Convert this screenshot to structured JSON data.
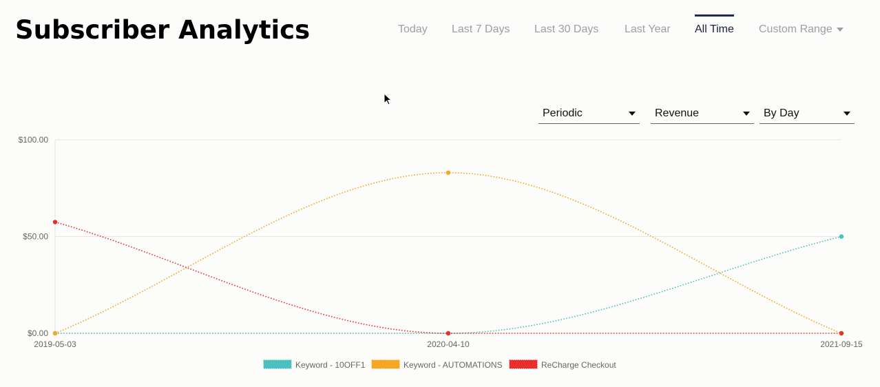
{
  "page": {
    "title": "Subscriber Analytics"
  },
  "tabs": [
    {
      "label": "Today",
      "active": false
    },
    {
      "label": "Last 7 Days",
      "active": false
    },
    {
      "label": "Last 30 Days",
      "active": false
    },
    {
      "label": "Last Year",
      "active": false
    },
    {
      "label": "All Time",
      "active": true
    },
    {
      "label": "Custom Range",
      "active": false
    }
  ],
  "controls": {
    "mode": "Periodic",
    "metric": "Revenue",
    "grouping": "By Day"
  },
  "chart_data": {
    "type": "line",
    "title": "",
    "xlabel": "",
    "ylabel": "",
    "categories": [
      "2019-05-03",
      "2020-04-10",
      "2021-09-15"
    ],
    "ylim": [
      0,
      100
    ],
    "yticks": [
      "$0.00",
      "$50.00",
      "$100.00"
    ],
    "ytick_values": [
      0,
      50,
      100
    ],
    "grid": true,
    "legend_position": "bottom",
    "series": [
      {
        "name": "Keyword - 10OFF1",
        "color": "#4bc0c0",
        "values": [
          0,
          0,
          50
        ]
      },
      {
        "name": "Keyword - AUTOMATIONS",
        "color": "#f5a623",
        "values": [
          0,
          83,
          0
        ]
      },
      {
        "name": "ReCharge Checkout",
        "color": "#e8302a",
        "values": [
          57.5,
          0,
          0
        ]
      }
    ]
  }
}
